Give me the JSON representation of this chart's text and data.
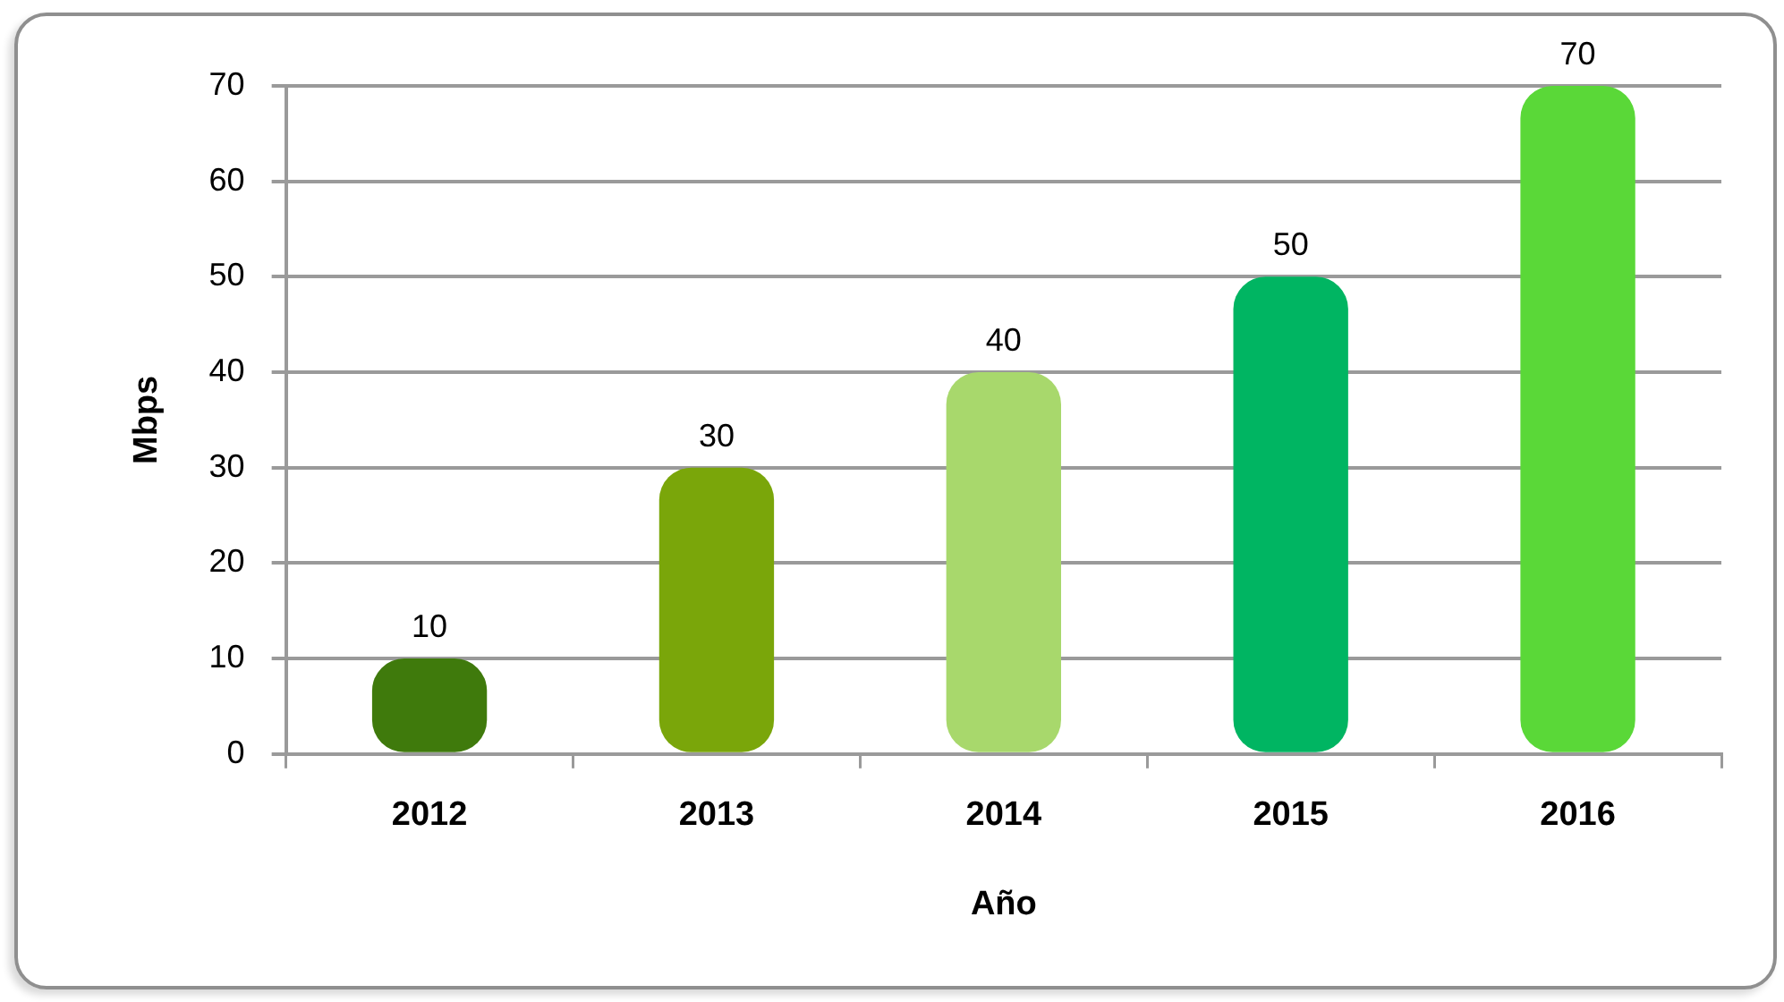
{
  "chart_data": {
    "type": "bar",
    "xlabel": "Año",
    "ylabel": "Mbps",
    "categories": [
      "2012",
      "2013",
      "2014",
      "2015",
      "2016"
    ],
    "values": [
      10,
      30,
      40,
      50,
      70
    ],
    "colors": [
      "#3f7a0c",
      "#7aa60a",
      "#a8d86c",
      "#00b562",
      "#5ad838"
    ],
    "ylim": [
      0,
      70
    ],
    "yticks": [
      0,
      10,
      20,
      30,
      40,
      50,
      60,
      70
    ],
    "grid": "y",
    "data_labels": true
  }
}
